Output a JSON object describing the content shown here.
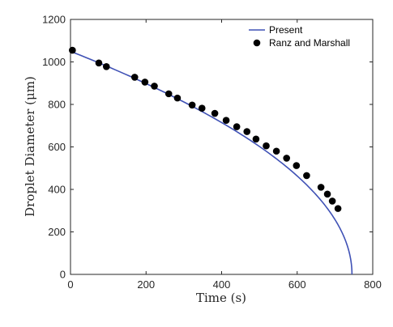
{
  "chart_data": {
    "type": "line",
    "xlabel": "Time (s)",
    "ylabel": "Droplet Diameter (μm)",
    "xlim": [
      0,
      800
    ],
    "ylim": [
      0,
      1200
    ],
    "xticks": [
      0,
      200,
      400,
      600,
      800
    ],
    "yticks": [
      0,
      200,
      400,
      600,
      800,
      1000,
      1200
    ],
    "grid": false,
    "legend_position": "top-right",
    "series": [
      {
        "name": "Present",
        "style": "line",
        "color": "#3f51b5",
        "model": {
          "d0": 1050,
          "t_end": 745
        },
        "x": [
          0,
          100,
          200,
          300,
          400,
          500,
          600,
          650,
          700,
          720,
          735,
          745
        ],
        "y": [
          1050,
          975,
          895,
          805,
          705,
          595,
          460,
          380,
          270,
          210,
          150,
          0
        ]
      },
      {
        "name": "Ranz and Marshall",
        "style": "markers",
        "color": "#000000",
        "x": [
          5,
          75,
          95,
          170,
          197,
          222,
          260,
          283,
          322,
          348,
          382,
          412,
          440,
          467,
          491,
          518,
          545,
          572,
          598,
          625,
          663,
          680,
          693,
          708
        ],
        "y": [
          1055,
          995,
          978,
          928,
          905,
          886,
          850,
          830,
          797,
          782,
          758,
          725,
          695,
          672,
          637,
          605,
          580,
          547,
          512,
          465,
          410,
          378,
          345,
          310
        ]
      }
    ]
  }
}
